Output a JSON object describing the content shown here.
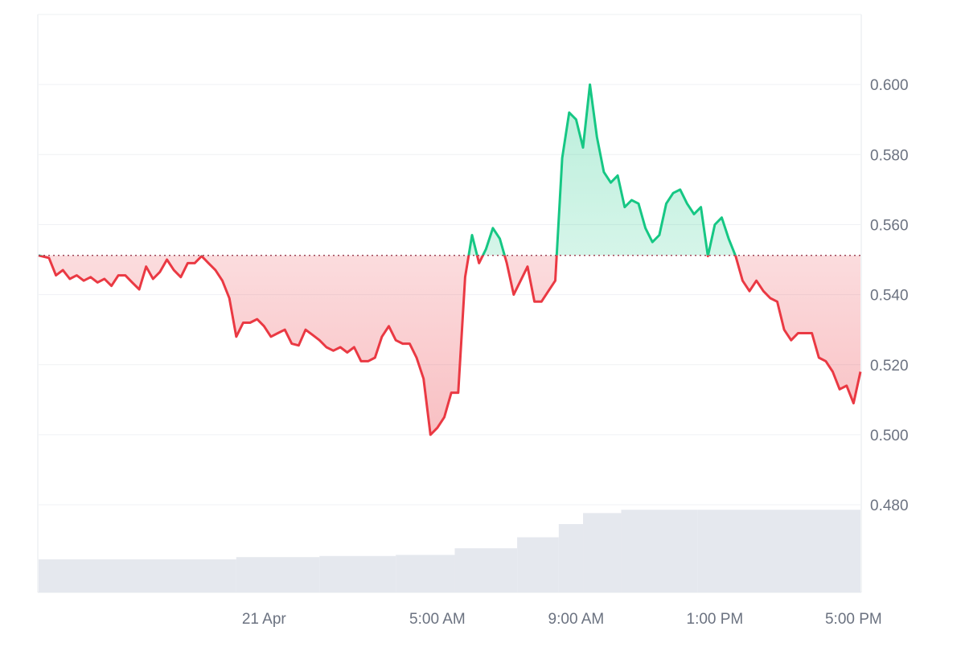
{
  "chart_data": {
    "type": "area",
    "baseline": 0.5512,
    "ylim": [
      0.455,
      0.62
    ],
    "y_ticks": [
      "0.600",
      "0.580",
      "0.560",
      "0.540",
      "0.520",
      "0.500",
      "0.480"
    ],
    "y_tick_values": [
      0.6,
      0.58,
      0.56,
      0.54,
      0.52,
      0.5,
      0.48
    ],
    "x_tick_labels": [
      "21 Apr",
      "5:00 AM",
      "9:00 AM",
      "1:00 PM",
      "5:00 PM"
    ],
    "x_tick_hours": [
      0,
      5,
      9,
      13,
      17
    ],
    "x_range_hours": [
      -6.5,
      17.2
    ],
    "colors": {
      "up": "#16c784",
      "down": "#ea3943",
      "grid": "#eff1f4",
      "volume": "#e5e8ee",
      "baseline": "#a0485a"
    },
    "x": [
      -6.5,
      -6.2,
      -6.0,
      -5.8,
      -5.6,
      -5.4,
      -5.2,
      -5.0,
      -4.8,
      -4.6,
      -4.4,
      -4.2,
      -4.0,
      -3.8,
      -3.6,
      -3.4,
      -3.2,
      -3.0,
      -2.8,
      -2.6,
      -2.4,
      -2.2,
      -2.0,
      -1.8,
      -1.6,
      -1.4,
      -1.2,
      -1.0,
      -0.8,
      -0.6,
      -0.4,
      -0.2,
      0.0,
      0.2,
      0.4,
      0.6,
      0.8,
      1.0,
      1.2,
      1.4,
      1.6,
      1.8,
      2.0,
      2.2,
      2.4,
      2.6,
      2.8,
      3.0,
      3.2,
      3.4,
      3.6,
      3.8,
      4.0,
      4.2,
      4.4,
      4.6,
      4.8,
      5.0,
      5.2,
      5.4,
      5.6,
      5.8,
      6.0,
      6.2,
      6.4,
      6.6,
      6.8,
      7.0,
      7.2,
      7.4,
      7.6,
      7.8,
      8.0,
      8.2,
      8.4,
      8.6,
      8.8,
      9.0,
      9.2,
      9.4,
      9.6,
      9.8,
      10.0,
      10.2,
      10.4,
      10.6,
      10.8,
      11.0,
      11.2,
      11.4,
      11.6,
      11.8,
      12.0,
      12.2,
      12.4,
      12.6,
      12.8,
      13.0,
      13.2,
      13.4,
      13.6,
      13.8,
      14.0,
      14.2,
      14.4,
      14.6,
      14.8,
      15.0,
      15.2,
      15.4,
      15.6,
      15.8,
      16.0,
      16.2,
      16.4,
      16.6,
      16.8,
      17.0,
      17.2
    ],
    "y": [
      0.5512,
      0.5505,
      0.5455,
      0.547,
      0.5445,
      0.5455,
      0.544,
      0.545,
      0.5435,
      0.5445,
      0.5425,
      0.5455,
      0.5455,
      0.5435,
      0.5415,
      0.548,
      0.5445,
      0.5465,
      0.55,
      0.547,
      0.545,
      0.549,
      0.549,
      0.551,
      0.549,
      0.547,
      0.544,
      0.539,
      0.528,
      0.532,
      0.532,
      0.533,
      0.531,
      0.528,
      0.529,
      0.53,
      0.526,
      0.5255,
      0.53,
      0.5285,
      0.527,
      0.525,
      0.524,
      0.525,
      0.5235,
      0.525,
      0.521,
      0.521,
      0.522,
      0.528,
      0.531,
      0.527,
      0.526,
      0.526,
      0.522,
      0.516,
      0.5,
      0.502,
      0.505,
      0.512,
      0.512,
      0.545,
      0.557,
      0.549,
      0.553,
      0.559,
      0.556,
      0.549,
      0.54,
      0.544,
      0.548,
      0.538,
      0.538,
      0.541,
      0.544,
      0.579,
      0.592,
      0.59,
      0.582,
      0.6,
      0.585,
      0.575,
      0.572,
      0.574,
      0.565,
      0.567,
      0.566,
      0.559,
      0.555,
      0.557,
      0.566,
      0.569,
      0.57,
      0.566,
      0.563,
      0.565,
      0.551,
      0.56,
      0.562,
      0.556,
      0.551,
      0.544,
      0.541,
      0.544,
      0.541,
      0.539,
      0.538,
      0.53,
      0.527,
      0.529,
      0.529,
      0.529,
      0.522,
      0.521,
      0.518,
      0.513,
      0.514,
      0.509,
      0.518
    ],
    "volume_bands": [
      {
        "from": -6.5,
        "to": -0.8,
        "value": 0.3
      },
      {
        "from": -0.8,
        "to": 1.6,
        "value": 0.32
      },
      {
        "from": 1.6,
        "to": 3.8,
        "value": 0.33
      },
      {
        "from": 3.8,
        "to": 5.5,
        "value": 0.34
      },
      {
        "from": 5.5,
        "to": 7.3,
        "value": 0.4
      },
      {
        "from": 7.3,
        "to": 8.5,
        "value": 0.5
      },
      {
        "from": 8.5,
        "to": 9.2,
        "value": 0.62
      },
      {
        "from": 9.2,
        "to": 10.3,
        "value": 0.72
      },
      {
        "from": 10.3,
        "to": 12.5,
        "value": 0.75
      },
      {
        "from": 12.5,
        "to": 17.2,
        "value": 0.75
      }
    ]
  }
}
